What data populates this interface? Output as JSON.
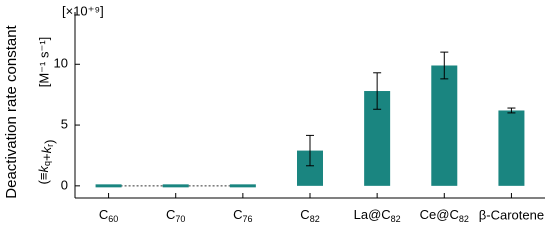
{
  "chart_data": {
    "type": "bar",
    "y_label": "Deactivation rate constant",
    "y_unit": "[M⁻¹ s⁻¹]",
    "y_note": "(≡kq+kr)",
    "y_multiplier": "[×10⁺⁹]",
    "categories": [
      "C60",
      "C70",
      "C76",
      "C82",
      "La@C82",
      "Ce@C82",
      "β-Carotene"
    ],
    "values": [
      0,
      0,
      0,
      2.9,
      7.8,
      9.9,
      6.2
    ],
    "errors": [
      null,
      null,
      null,
      1.25,
      1.5,
      1.1,
      0.2
    ],
    "color": "#1a8580",
    "ylim": [
      -1,
      14.3
    ],
    "yticks": [
      0,
      5,
      10
    ],
    "grid": false
  }
}
